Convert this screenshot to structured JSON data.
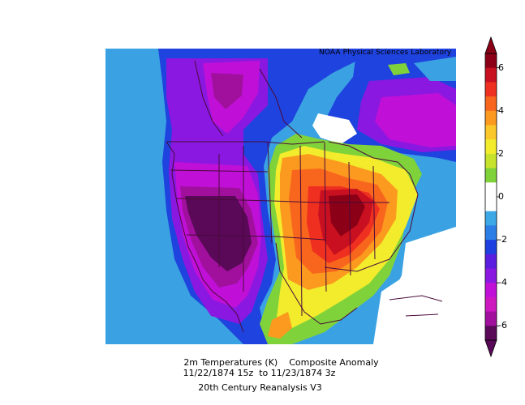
{
  "credit": "NOAA Physical Sciences Laboratory",
  "caption": {
    "line1": "2m Temperatures (K)    Composite Anomaly",
    "line2": "11/22/1874 15z  to 11/23/1874 3z",
    "line3": "20th Century Reanalysis V3"
  },
  "colorbar": {
    "ticks": [
      "6",
      "4",
      "2",
      "0",
      "-2",
      "-4",
      "-6"
    ],
    "colors": [
      "#8b0016",
      "#c81020",
      "#ef3020",
      "#f8661d",
      "#fb9a1e",
      "#fbc82a",
      "#f2ec2c",
      "#c6e22a",
      "#80d23a",
      "#ffffff",
      "#ffffff",
      "#3ca8e6",
      "#2a7ee6",
      "#1e40e0",
      "#5a1ee0",
      "#8a18e0",
      "#c010d8",
      "#cd18c0",
      "#a0109c",
      "#5a0858"
    ]
  }
}
